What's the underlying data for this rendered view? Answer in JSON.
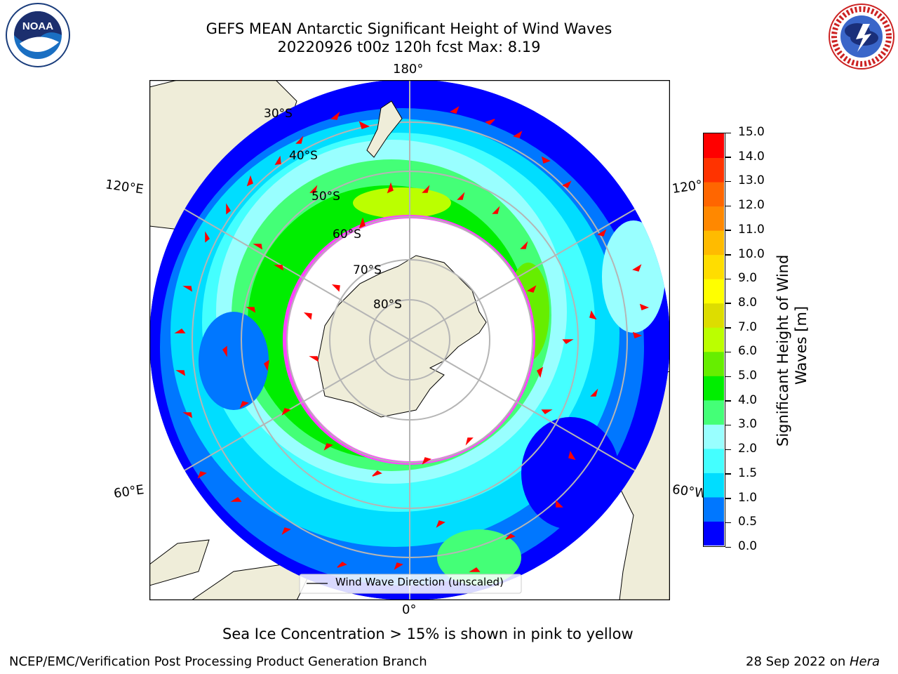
{
  "title": {
    "line1": "GEFS MEAN Antarctic Significant Height of Wind Waves",
    "line2": "20220926 t00z 120h fcst   Max: 8.19"
  },
  "map": {
    "projection": "south-polar-stereographic",
    "longitude_labels": [
      "180°",
      "120°E",
      "120°",
      "60°E",
      "60°W",
      "0°"
    ],
    "latitude_labels": [
      "30°S",
      "40°S",
      "50°S",
      "60°S",
      "70°S",
      "80°S"
    ],
    "legend_label": "Wind Wave Direction (unscaled)",
    "colors": {
      "land": "#efedd9",
      "ice_interior": "#ffffff",
      "ice_edge": "#ff44ff",
      "graticule": "#b5b5b5",
      "arrow": "#ff0000"
    }
  },
  "colorbar": {
    "label_line1": "Significant Height of Wind",
    "label_line2": "Waves [m]",
    "ticks": [
      "0.0",
      "0.5",
      "1.0",
      "1.5",
      "2.0",
      "3.0",
      "4.0",
      "5.0",
      "6.0",
      "7.0",
      "8.0",
      "9.0",
      "10.0",
      "11.0",
      "12.0",
      "13.0",
      "14.0",
      "15.0"
    ],
    "colors": [
      "#0000ff",
      "#0077ff",
      "#00ddff",
      "#44ffff",
      "#99ffff",
      "#44ff77",
      "#00ee00",
      "#66ee00",
      "#bbff00",
      "#dddd00",
      "#ffff00",
      "#ffdd00",
      "#ffbb00",
      "#ff8800",
      "#ff6600",
      "#ff3300",
      "#ff0000"
    ]
  },
  "logos": {
    "noaa_text": "NOAA",
    "nws_text": "NATIONAL WEATHER SERVICE"
  },
  "note": "Sea Ice Concentration > 15% is shown in pink to yellow",
  "footer": {
    "left": "NCEP/EMC/Verification Post Processing Product Generation Branch",
    "right_prefix": "28 Sep 2022 on ",
    "right_host": "Hera"
  }
}
